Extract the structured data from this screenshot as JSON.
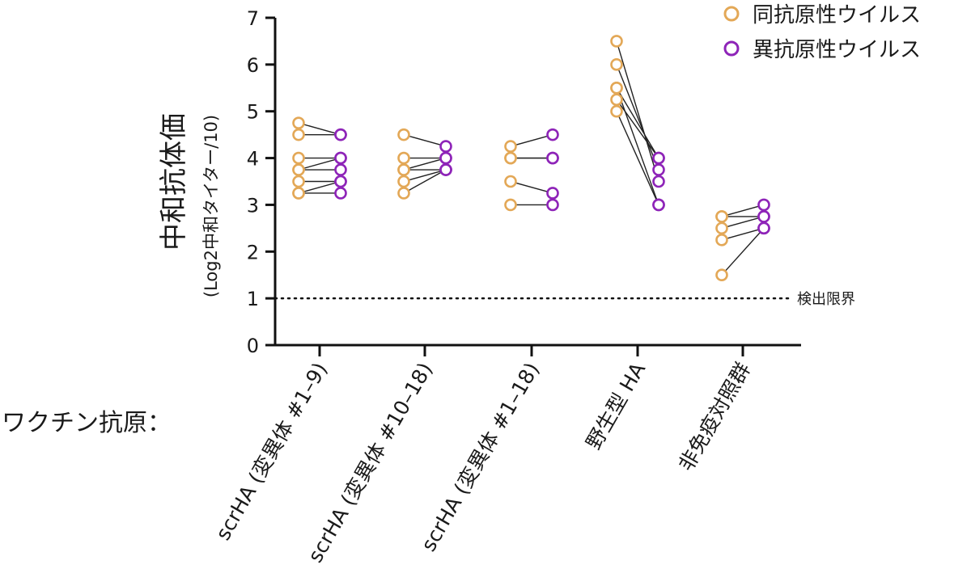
{
  "chart_data": {
    "type": "scatter",
    "title": "",
    "ylabel": "中和抗体価",
    "ylabel_sub": "(Log2中和タイター/10)",
    "ylim": [
      0,
      7
    ],
    "yticks": [
      "0",
      "1",
      "2",
      "3",
      "4",
      "5",
      "6",
      "7"
    ],
    "x_prefix_label": "ワクチン抗原：",
    "categories": [
      "scrHA (変異体 #1–9)",
      "scrHA (変異体 #10–18)",
      "scrHA (変異体 #1–18)",
      "野生型 HA",
      "非免疫対照群"
    ],
    "series": [
      {
        "name": "同抗原性ウイルス",
        "color": "#e3a857"
      },
      {
        "name": "異抗原性ウイルス",
        "color": "#8e24b8"
      }
    ],
    "detection_limit": {
      "value": 1,
      "label": "検出限界"
    },
    "pairs": [
      [
        [
          4.75,
          4.5
        ],
        [
          4.5,
          4.5
        ],
        [
          4.0,
          4.0
        ],
        [
          3.75,
          4.0
        ],
        [
          3.75,
          3.75
        ],
        [
          3.5,
          3.5
        ],
        [
          3.25,
          3.5
        ],
        [
          3.25,
          3.25
        ]
      ],
      [
        [
          4.5,
          4.25
        ],
        [
          4.0,
          4.0
        ],
        [
          3.75,
          4.0
        ],
        [
          3.75,
          3.75
        ],
        [
          3.5,
          3.75
        ],
        [
          3.25,
          3.75
        ]
      ],
      [
        [
          4.25,
          4.5
        ],
        [
          4.0,
          4.0
        ],
        [
          4.0,
          4.0
        ],
        [
          3.5,
          3.25
        ],
        [
          3.0,
          3.0
        ]
      ],
      [
        [
          6.5,
          3.5
        ],
        [
          6.0,
          3.75
        ],
        [
          5.5,
          4.0
        ],
        [
          5.5,
          3.0
        ],
        [
          5.25,
          4.0
        ],
        [
          5.0,
          3.0
        ]
      ],
      [
        [
          2.75,
          3.0
        ],
        [
          2.75,
          2.75
        ],
        [
          2.5,
          2.75
        ],
        [
          2.25,
          2.5
        ],
        [
          1.5,
          2.5
        ]
      ]
    ]
  }
}
